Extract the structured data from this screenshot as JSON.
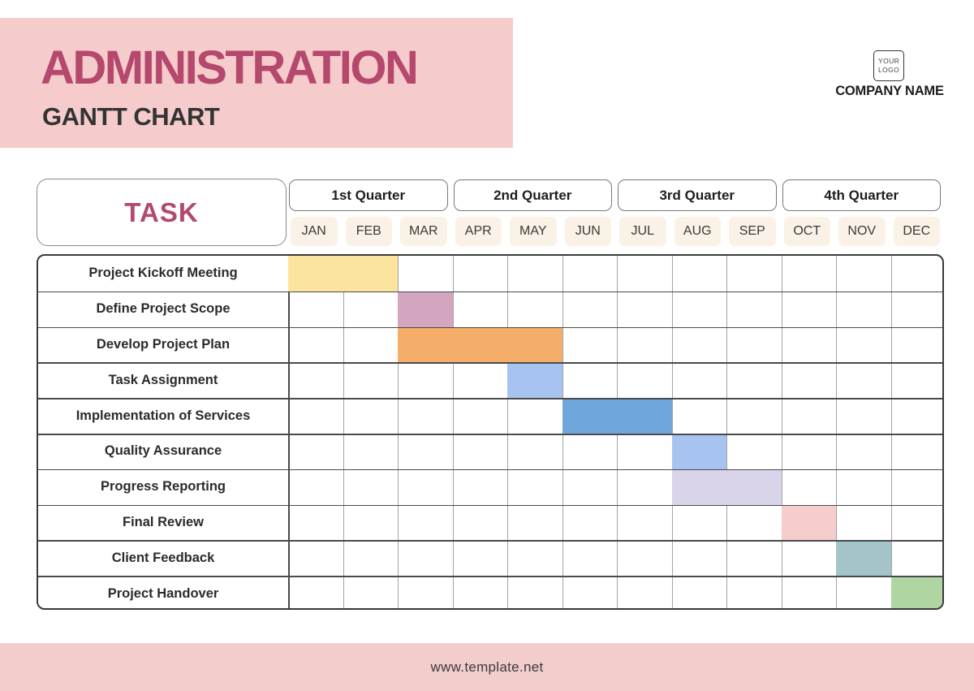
{
  "header": {
    "title": "ADMINISTRATION",
    "subtitle": "GANTT CHART"
  },
  "branding": {
    "logo_line1": "YOUR",
    "logo_line2": "LOGO",
    "company_name": "COMPANY NAME"
  },
  "table": {
    "task_header": "TASK"
  },
  "theme": {
    "banner_pink": "#F5CBCB",
    "footer_pink": "#F3CCCC",
    "accent_rose": "#B5486D",
    "month_chip_bg": "#FAF1E7"
  },
  "chart_data": {
    "type": "gantt",
    "title": "Administration Gantt Chart",
    "quarters": [
      "1st Quarter",
      "2nd Quarter",
      "3rd Quarter",
      "4th Quarter"
    ],
    "months": [
      "JAN",
      "FEB",
      "MAR",
      "APR",
      "MAY",
      "JUN",
      "JUL",
      "AUG",
      "SEP",
      "OCT",
      "NOV",
      "DEC"
    ],
    "tasks": [
      {
        "name": "Project Kickoff Meeting",
        "start": "JAN",
        "end": "FEB",
        "color": "#FBE49E"
      },
      {
        "name": "Define Project Scope",
        "start": "MAR",
        "end": "MAR",
        "color": "#D3A5BF"
      },
      {
        "name": "Develop Project Plan",
        "start": "MAR",
        "end": "MAY",
        "color": "#F5AE69"
      },
      {
        "name": "Task Assignment",
        "start": "MAY",
        "end": "MAY",
        "color": "#A7C3F0"
      },
      {
        "name": "Implementation of Services",
        "start": "JUN",
        "end": "JUL",
        "color": "#6FA6DC"
      },
      {
        "name": "Quality Assurance",
        "start": "AUG",
        "end": "AUG",
        "color": "#A7C3F0"
      },
      {
        "name": "Progress Reporting",
        "start": "AUG",
        "end": "SEP",
        "color": "#D9D4EA"
      },
      {
        "name": "Final Review",
        "start": "OCT",
        "end": "OCT",
        "color": "#F5CDCD"
      },
      {
        "name": "Client Feedback",
        "start": "NOV",
        "end": "NOV",
        "color": "#A3C4C9"
      },
      {
        "name": "Project Handover",
        "start": "DEC",
        "end": "DEC",
        "color": "#AFD5A3"
      }
    ]
  },
  "footer": {
    "url": "www.template.net"
  }
}
